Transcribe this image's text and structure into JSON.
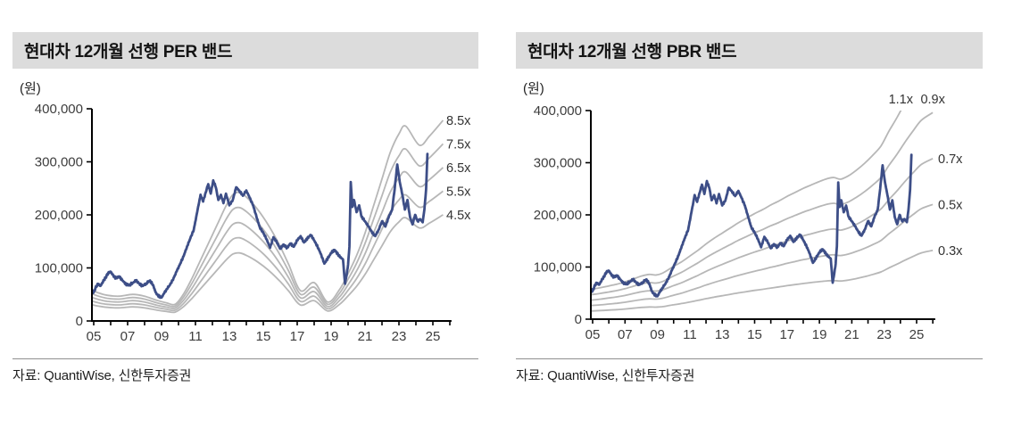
{
  "colors": {
    "header_bg": "#dcdcdc",
    "title_text": "#141414",
    "band_line": "#b7b7b7",
    "price_line": "#3d4e87",
    "axis": "#000000",
    "tick_text": "#3d3d3d",
    "band_label_text": "#333333",
    "source_text": "#1f1f1f"
  },
  "chart_data": [
    {
      "id": "per",
      "type": "line",
      "title": "현대차 12개월 선행 PER 밴드",
      "unit_label": "(원)",
      "source": "자료: QuantiWise, 신한투자증권",
      "ylim": [
        0,
        400000
      ],
      "yticks": [
        0,
        100000,
        200000,
        300000,
        400000
      ],
      "xtick_labels": [
        "05",
        "07",
        "09",
        "11",
        "13",
        "15",
        "17",
        "19",
        "21",
        "23",
        "25"
      ],
      "xtick_years": [
        2005,
        2007,
        2009,
        2011,
        2013,
        2015,
        2017,
        2019,
        2021,
        2023,
        2025
      ],
      "grid": false,
      "legend": "none",
      "band_labels": [
        "8.5x",
        "7.5x",
        "6.5x",
        "5.5x",
        "4.5x"
      ],
      "band_multiples": [
        8.5,
        7.5,
        6.5,
        5.5,
        4.5
      ],
      "band_base_points": [
        [
          2004.85,
          6900
        ],
        [
          2005.3,
          6200
        ],
        [
          2005.8,
          5700
        ],
        [
          2006.5,
          5500
        ],
        [
          2007.3,
          5900
        ],
        [
          2008.0,
          5500
        ],
        [
          2008.7,
          4600
        ],
        [
          2009.3,
          4000
        ],
        [
          2009.8,
          3700
        ],
        [
          2010.3,
          6000
        ],
        [
          2010.8,
          9500
        ],
        [
          2011.3,
          13500
        ],
        [
          2011.8,
          17500
        ],
        [
          2012.3,
          21500
        ],
        [
          2012.8,
          25500
        ],
        [
          2013.2,
          28000
        ],
        [
          2013.6,
          28500
        ],
        [
          2014.0,
          27500
        ],
        [
          2014.5,
          25500
        ],
        [
          2015.0,
          23000
        ],
        [
          2015.5,
          20000
        ],
        [
          2016.0,
          16500
        ],
        [
          2016.5,
          12500
        ],
        [
          2017.2,
          6700
        ],
        [
          2018.0,
          8500
        ],
        [
          2018.8,
          4200
        ],
        [
          2019.5,
          7000
        ],
        [
          2020.0,
          10500
        ],
        [
          2020.5,
          14500
        ],
        [
          2021.0,
          19500
        ],
        [
          2021.5,
          25500
        ],
        [
          2022.0,
          31500
        ],
        [
          2022.5,
          37500
        ],
        [
          2023.0,
          41500
        ],
        [
          2023.4,
          43200
        ],
        [
          2024.2,
          39000
        ],
        [
          2024.8,
          41000
        ],
        [
          2025.6,
          44500
        ]
      ],
      "price_points": [
        [
          2004.85,
          57000
        ],
        [
          2005.0,
          54000
        ],
        [
          2005.1,
          62000
        ],
        [
          2005.25,
          70000
        ],
        [
          2005.4,
          66000
        ],
        [
          2005.55,
          74000
        ],
        [
          2005.7,
          82000
        ],
        [
          2005.85,
          90000
        ],
        [
          2006.0,
          93000
        ],
        [
          2006.15,
          86000
        ],
        [
          2006.3,
          80000
        ],
        [
          2006.5,
          84000
        ],
        [
          2006.7,
          76000
        ],
        [
          2006.9,
          70000
        ],
        [
          2007.1,
          67000
        ],
        [
          2007.3,
          72000
        ],
        [
          2007.5,
          76000
        ],
        [
          2007.7,
          70000
        ],
        [
          2007.9,
          66000
        ],
        [
          2008.1,
          71000
        ],
        [
          2008.3,
          76000
        ],
        [
          2008.5,
          68000
        ],
        [
          2008.65,
          54000
        ],
        [
          2008.8,
          47000
        ],
        [
          2009.0,
          44000
        ],
        [
          2009.15,
          52000
        ],
        [
          2009.3,
          60000
        ],
        [
          2009.5,
          68000
        ],
        [
          2009.7,
          80000
        ],
        [
          2009.9,
          94000
        ],
        [
          2010.1,
          108000
        ],
        [
          2010.3,
          122000
        ],
        [
          2010.5,
          140000
        ],
        [
          2010.7,
          156000
        ],
        [
          2010.9,
          172000
        ],
        [
          2011.1,
          205000
        ],
        [
          2011.3,
          238000
        ],
        [
          2011.45,
          225000
        ],
        [
          2011.6,
          242000
        ],
        [
          2011.75,
          258000
        ],
        [
          2011.9,
          240000
        ],
        [
          2012.05,
          265000
        ],
        [
          2012.2,
          252000
        ],
        [
          2012.35,
          228000
        ],
        [
          2012.5,
          238000
        ],
        [
          2012.65,
          222000
        ],
        [
          2012.8,
          240000
        ],
        [
          2013.0,
          218000
        ],
        [
          2013.2,
          228000
        ],
        [
          2013.4,
          252000
        ],
        [
          2013.6,
          245000
        ],
        [
          2013.8,
          236000
        ],
        [
          2014.0,
          246000
        ],
        [
          2014.2,
          232000
        ],
        [
          2014.4,
          218000
        ],
        [
          2014.6,
          196000
        ],
        [
          2014.8,
          176000
        ],
        [
          2015.0,
          166000
        ],
        [
          2015.2,
          154000
        ],
        [
          2015.4,
          138000
        ],
        [
          2015.6,
          158000
        ],
        [
          2015.8,
          148000
        ],
        [
          2016.0,
          136000
        ],
        [
          2016.2,
          144000
        ],
        [
          2016.4,
          138000
        ],
        [
          2016.6,
          146000
        ],
        [
          2016.8,
          140000
        ],
        [
          2017.0,
          152000
        ],
        [
          2017.2,
          160000
        ],
        [
          2017.4,
          148000
        ],
        [
          2017.6,
          156000
        ],
        [
          2017.8,
          162000
        ],
        [
          2018.0,
          152000
        ],
        [
          2018.2,
          140000
        ],
        [
          2018.4,
          126000
        ],
        [
          2018.6,
          108000
        ],
        [
          2018.8,
          118000
        ],
        [
          2019.0,
          128000
        ],
        [
          2019.2,
          134000
        ],
        [
          2019.4,
          126000
        ],
        [
          2019.55,
          120000
        ],
        [
          2019.7,
          116000
        ],
        [
          2019.82,
          70000
        ],
        [
          2019.92,
          88000
        ],
        [
          2020.0,
          106000
        ],
        [
          2020.08,
          140000
        ],
        [
          2020.16,
          262000
        ],
        [
          2020.25,
          215000
        ],
        [
          2020.35,
          228000
        ],
        [
          2020.5,
          205000
        ],
        [
          2020.65,
          218000
        ],
        [
          2020.8,
          196000
        ],
        [
          2021.0,
          188000
        ],
        [
          2021.2,
          178000
        ],
        [
          2021.4,
          168000
        ],
        [
          2021.6,
          160000
        ],
        [
          2021.8,
          172000
        ],
        [
          2022.0,
          188000
        ],
        [
          2022.2,
          178000
        ],
        [
          2022.4,
          196000
        ],
        [
          2022.6,
          210000
        ],
        [
          2022.75,
          250000
        ],
        [
          2022.9,
          295000
        ],
        [
          2023.05,
          262000
        ],
        [
          2023.2,
          238000
        ],
        [
          2023.35,
          210000
        ],
        [
          2023.5,
          228000
        ],
        [
          2023.65,
          196000
        ],
        [
          2023.8,
          182000
        ],
        [
          2023.95,
          200000
        ],
        [
          2024.1,
          188000
        ],
        [
          2024.25,
          192000
        ],
        [
          2024.4,
          186000
        ],
        [
          2024.5,
          210000
        ],
        [
          2024.6,
          248000
        ],
        [
          2024.68,
          315000
        ]
      ]
    },
    {
      "id": "pbr",
      "type": "line",
      "title": "현대차 12개월 선행 PBR 밴드",
      "unit_label": "(원)",
      "source": "자료: QuantiWise, 신한투자증권",
      "ylim": [
        0,
        400000
      ],
      "yticks": [
        0,
        100000,
        200000,
        300000,
        400000
      ],
      "xtick_labels": [
        "05",
        "07",
        "09",
        "11",
        "13",
        "15",
        "17",
        "19",
        "21",
        "23",
        "25"
      ],
      "xtick_years": [
        2005,
        2007,
        2009,
        2011,
        2013,
        2015,
        2017,
        2019,
        2021,
        2023,
        2025
      ],
      "grid": false,
      "legend": "none",
      "band_labels": [
        "1.1x",
        "0.9x",
        "0.7x",
        "0.5x",
        "0.3x"
      ],
      "band_multiples": [
        1.1,
        0.9,
        0.7,
        0.5,
        0.3
      ],
      "band_base_points": [
        [
          2004.85,
          52000
        ],
        [
          2005.5,
          55000
        ],
        [
          2006.0,
          58000
        ],
        [
          2006.5,
          61000
        ],
        [
          2007.0,
          65000
        ],
        [
          2007.5,
          70000
        ],
        [
          2008.0,
          75000
        ],
        [
          2008.5,
          78000
        ],
        [
          2008.9,
          77000
        ],
        [
          2009.3,
          80000
        ],
        [
          2010.0,
          92000
        ],
        [
          2010.5,
          100000
        ],
        [
          2011.0,
          110000
        ],
        [
          2011.5,
          120000
        ],
        [
          2012.0,
          131000
        ],
        [
          2012.5,
          141000
        ],
        [
          2013.0,
          150000
        ],
        [
          2013.5,
          159000
        ],
        [
          2014.0,
          168000
        ],
        [
          2014.5,
          176000
        ],
        [
          2015.0,
          184000
        ],
        [
          2015.5,
          191000
        ],
        [
          2016.0,
          199000
        ],
        [
          2016.5,
          206000
        ],
        [
          2017.0,
          214000
        ],
        [
          2017.5,
          221000
        ],
        [
          2018.0,
          228000
        ],
        [
          2018.5,
          234000
        ],
        [
          2019.0,
          240000
        ],
        [
          2019.5,
          245000
        ],
        [
          2019.9,
          247000
        ],
        [
          2020.3,
          244000
        ],
        [
          2020.8,
          250000
        ],
        [
          2021.3,
          260000
        ],
        [
          2021.8,
          272000
        ],
        [
          2022.3,
          286000
        ],
        [
          2022.8,
          302000
        ],
        [
          2023.3,
          328000
        ],
        [
          2023.8,
          352000
        ],
        [
          2024.3,
          378000
        ],
        [
          2024.8,
          402000
        ],
        [
          2025.3,
          424000
        ],
        [
          2026.0,
          440000
        ]
      ],
      "price_points": [
        [
          2004.85,
          57000
        ],
        [
          2005.0,
          54000
        ],
        [
          2005.1,
          62000
        ],
        [
          2005.25,
          70000
        ],
        [
          2005.4,
          66000
        ],
        [
          2005.55,
          74000
        ],
        [
          2005.7,
          82000
        ],
        [
          2005.85,
          90000
        ],
        [
          2006.0,
          93000
        ],
        [
          2006.15,
          86000
        ],
        [
          2006.3,
          80000
        ],
        [
          2006.5,
          84000
        ],
        [
          2006.7,
          76000
        ],
        [
          2006.9,
          70000
        ],
        [
          2007.1,
          67000
        ],
        [
          2007.3,
          72000
        ],
        [
          2007.5,
          76000
        ],
        [
          2007.7,
          70000
        ],
        [
          2007.9,
          66000
        ],
        [
          2008.1,
          71000
        ],
        [
          2008.3,
          76000
        ],
        [
          2008.5,
          68000
        ],
        [
          2008.65,
          54000
        ],
        [
          2008.8,
          47000
        ],
        [
          2009.0,
          44000
        ],
        [
          2009.15,
          52000
        ],
        [
          2009.3,
          60000
        ],
        [
          2009.5,
          68000
        ],
        [
          2009.7,
          80000
        ],
        [
          2009.9,
          94000
        ],
        [
          2010.1,
          108000
        ],
        [
          2010.3,
          122000
        ],
        [
          2010.5,
          140000
        ],
        [
          2010.7,
          156000
        ],
        [
          2010.9,
          172000
        ],
        [
          2011.1,
          205000
        ],
        [
          2011.3,
          238000
        ],
        [
          2011.45,
          225000
        ],
        [
          2011.6,
          242000
        ],
        [
          2011.75,
          258000
        ],
        [
          2011.9,
          240000
        ],
        [
          2012.05,
          265000
        ],
        [
          2012.2,
          252000
        ],
        [
          2012.35,
          228000
        ],
        [
          2012.5,
          238000
        ],
        [
          2012.65,
          222000
        ],
        [
          2012.8,
          240000
        ],
        [
          2013.0,
          218000
        ],
        [
          2013.2,
          228000
        ],
        [
          2013.4,
          252000
        ],
        [
          2013.6,
          245000
        ],
        [
          2013.8,
          236000
        ],
        [
          2014.0,
          246000
        ],
        [
          2014.2,
          232000
        ],
        [
          2014.4,
          218000
        ],
        [
          2014.6,
          196000
        ],
        [
          2014.8,
          176000
        ],
        [
          2015.0,
          166000
        ],
        [
          2015.2,
          154000
        ],
        [
          2015.4,
          138000
        ],
        [
          2015.6,
          158000
        ],
        [
          2015.8,
          148000
        ],
        [
          2016.0,
          136000
        ],
        [
          2016.2,
          144000
        ],
        [
          2016.4,
          138000
        ],
        [
          2016.6,
          146000
        ],
        [
          2016.8,
          140000
        ],
        [
          2017.0,
          152000
        ],
        [
          2017.2,
          160000
        ],
        [
          2017.4,
          148000
        ],
        [
          2017.6,
          156000
        ],
        [
          2017.8,
          162000
        ],
        [
          2018.0,
          152000
        ],
        [
          2018.2,
          140000
        ],
        [
          2018.4,
          126000
        ],
        [
          2018.6,
          108000
        ],
        [
          2018.8,
          118000
        ],
        [
          2019.0,
          128000
        ],
        [
          2019.2,
          134000
        ],
        [
          2019.4,
          126000
        ],
        [
          2019.55,
          120000
        ],
        [
          2019.7,
          116000
        ],
        [
          2019.82,
          70000
        ],
        [
          2019.92,
          88000
        ],
        [
          2020.0,
          106000
        ],
        [
          2020.08,
          140000
        ],
        [
          2020.16,
          262000
        ],
        [
          2020.25,
          215000
        ],
        [
          2020.35,
          228000
        ],
        [
          2020.5,
          205000
        ],
        [
          2020.65,
          218000
        ],
        [
          2020.8,
          196000
        ],
        [
          2021.0,
          188000
        ],
        [
          2021.2,
          178000
        ],
        [
          2021.4,
          168000
        ],
        [
          2021.6,
          160000
        ],
        [
          2021.8,
          172000
        ],
        [
          2022.0,
          188000
        ],
        [
          2022.2,
          178000
        ],
        [
          2022.4,
          196000
        ],
        [
          2022.6,
          210000
        ],
        [
          2022.75,
          250000
        ],
        [
          2022.9,
          295000
        ],
        [
          2023.05,
          262000
        ],
        [
          2023.2,
          238000
        ],
        [
          2023.35,
          210000
        ],
        [
          2023.5,
          228000
        ],
        [
          2023.65,
          196000
        ],
        [
          2023.8,
          182000
        ],
        [
          2023.95,
          200000
        ],
        [
          2024.1,
          188000
        ],
        [
          2024.25,
          192000
        ],
        [
          2024.4,
          186000
        ],
        [
          2024.5,
          210000
        ],
        [
          2024.6,
          248000
        ],
        [
          2024.68,
          315000
        ]
      ]
    }
  ]
}
